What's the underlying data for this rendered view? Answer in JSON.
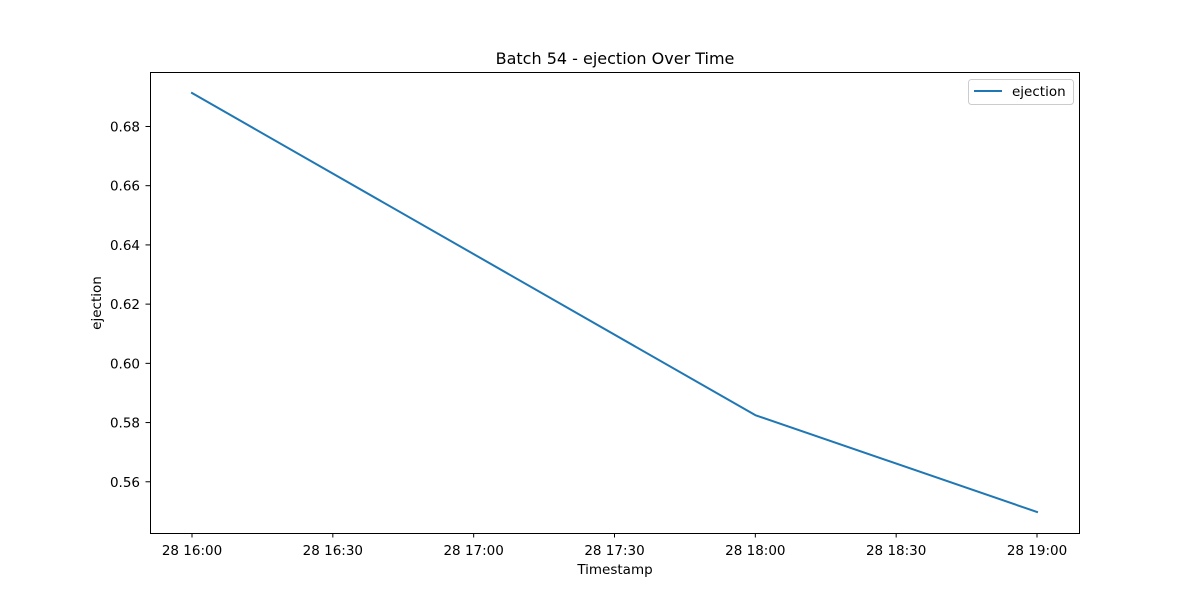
{
  "chart_data": {
    "type": "line",
    "title": "Batch 54 - ejection Over Time",
    "xlabel": "Timestamp",
    "ylabel": "ejection",
    "x": [
      "28 16:00",
      "28 18:00",
      "28 19:00"
    ],
    "series": [
      {
        "name": "ejection",
        "color": "#1f77b4",
        "values": [
          0.6913,
          0.5825,
          0.5498
        ]
      }
    ],
    "x_ticks": [
      "28 16:00",
      "28 16:30",
      "28 17:00",
      "28 17:30",
      "28 18:00",
      "28 18:30",
      "28 19:00"
    ],
    "y_ticks": [
      "0.56",
      "0.58",
      "0.60",
      "0.62",
      "0.64",
      "0.66",
      "0.68"
    ],
    "ylim": [
      0.5427,
      0.6984
    ],
    "grid": false,
    "legend_position": "upper right"
  }
}
